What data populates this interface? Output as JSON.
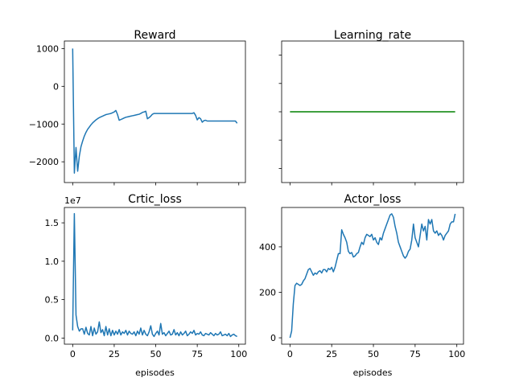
{
  "colors": {
    "line": "#1f77b4",
    "lr_line": "#008000"
  },
  "chart_data": [
    {
      "type": "line",
      "title": "Reward",
      "xlabel": "",
      "ylabel": "",
      "xlim": [
        -5,
        104
      ],
      "ylim": [
        -2550,
        1200
      ],
      "xticks": [
        0,
        25,
        50,
        75,
        100
      ],
      "show_xtick_labels": false,
      "yticks": [
        1000,
        0,
        -1000,
        -2000
      ],
      "ytick_labels": [
        "1000",
        "0",
        "−1000",
        "−2000"
      ],
      "grid": false,
      "series": [
        {
          "x": [
            0,
            1,
            2,
            3,
            4,
            5,
            6,
            7,
            8,
            9,
            10,
            11,
            12,
            13,
            14,
            15,
            16,
            17,
            18,
            19,
            20,
            21,
            22,
            23,
            24,
            25,
            26,
            27,
            28,
            29,
            30,
            31,
            32,
            33,
            34,
            35,
            36,
            37,
            38,
            39,
            40,
            41,
            42,
            43,
            44,
            45,
            46,
            47,
            48,
            49,
            50,
            51,
            52,
            53,
            54,
            55,
            56,
            57,
            58,
            59,
            60,
            61,
            62,
            63,
            64,
            65,
            66,
            67,
            68,
            69,
            70,
            71,
            72,
            73,
            74,
            75,
            76,
            77,
            78,
            79,
            80,
            81,
            82,
            83,
            84,
            85,
            86,
            87,
            88,
            89,
            90,
            91,
            92,
            93,
            94,
            95,
            96,
            97,
            98,
            99
          ],
          "values": [
            1000,
            -2300,
            -1620,
            -2250,
            -1850,
            -1600,
            -1450,
            -1320,
            -1220,
            -1140,
            -1080,
            -1020,
            -970,
            -930,
            -890,
            -860,
            -830,
            -810,
            -790,
            -770,
            -750,
            -740,
            -730,
            -720,
            -700,
            -680,
            -640,
            -750,
            -900,
            -880,
            -860,
            -840,
            -820,
            -810,
            -800,
            -790,
            -780,
            -770,
            -760,
            -750,
            -740,
            -720,
            -690,
            -680,
            -660,
            -860,
            -830,
            -790,
            -740,
            -720,
            -720,
            -720,
            -720,
            -720,
            -720,
            -720,
            -720,
            -720,
            -720,
            -720,
            -720,
            -720,
            -720,
            -720,
            -720,
            -720,
            -720,
            -720,
            -720,
            -720,
            -720,
            -720,
            -720,
            -700,
            -770,
            -890,
            -830,
            -860,
            -950,
            -910,
            -900,
            -920,
            -920,
            -920,
            -920,
            -920,
            -920,
            -920,
            -920,
            -920,
            -920,
            -920,
            -920,
            -920,
            -920,
            -920,
            -920,
            -920,
            -920,
            -980
          ]
        }
      ]
    },
    {
      "type": "line",
      "title": "Learning_rate",
      "xlabel": "",
      "ylabel": "",
      "xlim": [
        -5,
        104
      ],
      "ylim": [
        0,
        1
      ],
      "xticks": [
        0,
        25,
        50,
        75,
        100
      ],
      "show_xtick_labels": false,
      "yticks": [
        0.9,
        0.7,
        0.5,
        0.3,
        0.1
      ],
      "show_ytick_labels": false,
      "grid": false,
      "series": [
        {
          "x": [
            0,
            99
          ],
          "values": [
            0.5,
            0.5
          ]
        }
      ]
    },
    {
      "type": "line",
      "title": "Crtic_loss",
      "xlabel": "episodes",
      "ylabel": "",
      "offset_text": "1e7",
      "xlim": [
        -5,
        104
      ],
      "ylim": [
        -0.08,
        1.7
      ],
      "xticks": [
        0,
        25,
        50,
        75,
        100
      ],
      "xtick_labels": [
        "0",
        "25",
        "50",
        "75",
        "100"
      ],
      "yticks": [
        0.0,
        0.5,
        1.0,
        1.5
      ],
      "ytick_labels": [
        "0.0",
        "0.5",
        "1.0",
        "1.5"
      ],
      "grid": false,
      "series": [
        {
          "x": [
            0,
            1,
            2,
            3,
            4,
            5,
            6,
            7,
            8,
            9,
            10,
            11,
            12,
            13,
            14,
            15,
            16,
            17,
            18,
            19,
            20,
            21,
            22,
            23,
            24,
            25,
            26,
            27,
            28,
            29,
            30,
            31,
            32,
            33,
            34,
            35,
            36,
            37,
            38,
            39,
            40,
            41,
            42,
            43,
            44,
            45,
            46,
            47,
            48,
            49,
            50,
            51,
            52,
            53,
            54,
            55,
            56,
            57,
            58,
            59,
            60,
            61,
            62,
            63,
            64,
            65,
            66,
            67,
            68,
            69,
            70,
            71,
            72,
            73,
            74,
            75,
            76,
            77,
            78,
            79,
            80,
            81,
            82,
            83,
            84,
            85,
            86,
            87,
            88,
            89,
            90,
            91,
            92,
            93,
            94,
            95,
            96,
            97,
            98,
            99
          ],
          "values": [
            0.1,
            1.62,
            0.3,
            0.15,
            0.09,
            0.12,
            0.12,
            0.05,
            0.14,
            0.06,
            0.04,
            0.15,
            0.03,
            0.13,
            0.05,
            0.08,
            0.21,
            0.07,
            0.11,
            0.03,
            0.15,
            0.04,
            0.12,
            0.03,
            0.1,
            0.04,
            0.09,
            0.05,
            0.11,
            0.04,
            0.08,
            0.06,
            0.1,
            0.04,
            0.09,
            0.06,
            0.05,
            0.08,
            0.03,
            0.09,
            0.05,
            0.13,
            0.04,
            0.1,
            0.05,
            0.03,
            0.08,
            0.16,
            0.05,
            0.02,
            0.06,
            0.09,
            0.04,
            0.19,
            0.05,
            0.07,
            0.03,
            0.06,
            0.09,
            0.04,
            0.05,
            0.11,
            0.04,
            0.07,
            0.03,
            0.08,
            0.04,
            0.06,
            0.09,
            0.03,
            0.05,
            0.08,
            0.06,
            0.1,
            0.04,
            0.06,
            0.05,
            0.08,
            0.04,
            0.03,
            0.06,
            0.05,
            0.04,
            0.07,
            0.05,
            0.03,
            0.06,
            0.04,
            0.05,
            0.08,
            0.03,
            0.04,
            0.05,
            0.03,
            0.06,
            0.02,
            0.04,
            0.05,
            0.03,
            0.02
          ]
        }
      ]
    },
    {
      "type": "line",
      "title": "Actor_loss",
      "xlabel": "episodes",
      "ylabel": "",
      "xlim": [
        -5,
        104
      ],
      "ylim": [
        -28,
        573
      ],
      "xticks": [
        0,
        25,
        50,
        75,
        100
      ],
      "xtick_labels": [
        "0",
        "25",
        "50",
        "75",
        "100"
      ],
      "yticks": [
        0,
        200,
        400
      ],
      "ytick_labels": [
        "0",
        "200",
        "400"
      ],
      "grid": false,
      "series": [
        {
          "x": [
            0,
            1,
            2,
            3,
            4,
            5,
            6,
            7,
            8,
            9,
            10,
            11,
            12,
            13,
            14,
            15,
            16,
            17,
            18,
            19,
            20,
            21,
            22,
            23,
            24,
            25,
            26,
            27,
            28,
            29,
            30,
            31,
            32,
            33,
            34,
            35,
            36,
            37,
            38,
            39,
            40,
            41,
            42,
            43,
            44,
            45,
            46,
            47,
            48,
            49,
            50,
            51,
            52,
            53,
            54,
            55,
            56,
            57,
            58,
            59,
            60,
            61,
            62,
            63,
            64,
            65,
            66,
            67,
            68,
            69,
            70,
            71,
            72,
            73,
            74,
            75,
            76,
            77,
            78,
            79,
            80,
            81,
            82,
            83,
            84,
            85,
            86,
            87,
            88,
            89,
            90,
            91,
            92,
            93,
            94,
            95,
            96,
            97,
            98,
            99
          ],
          "values": [
            0,
            30,
            150,
            230,
            240,
            235,
            230,
            235,
            250,
            260,
            280,
            300,
            305,
            290,
            275,
            285,
            280,
            290,
            295,
            285,
            300,
            300,
            290,
            305,
            300,
            310,
            290,
            310,
            340,
            370,
            370,
            475,
            455,
            440,
            420,
            380,
            370,
            375,
            355,
            360,
            370,
            375,
            400,
            420,
            410,
            440,
            455,
            450,
            445,
            455,
            430,
            440,
            420,
            410,
            440,
            430,
            460,
            480,
            500,
            520,
            540,
            545,
            530,
            490,
            460,
            420,
            400,
            380,
            360,
            350,
            360,
            380,
            390,
            430,
            500,
            440,
            420,
            400,
            450,
            500,
            470,
            490,
            430,
            520,
            500,
            520,
            470,
            460,
            470,
            450,
            460,
            450,
            430,
            450,
            460,
            470,
            500,
            510,
            510,
            545
          ]
        }
      ]
    }
  ]
}
